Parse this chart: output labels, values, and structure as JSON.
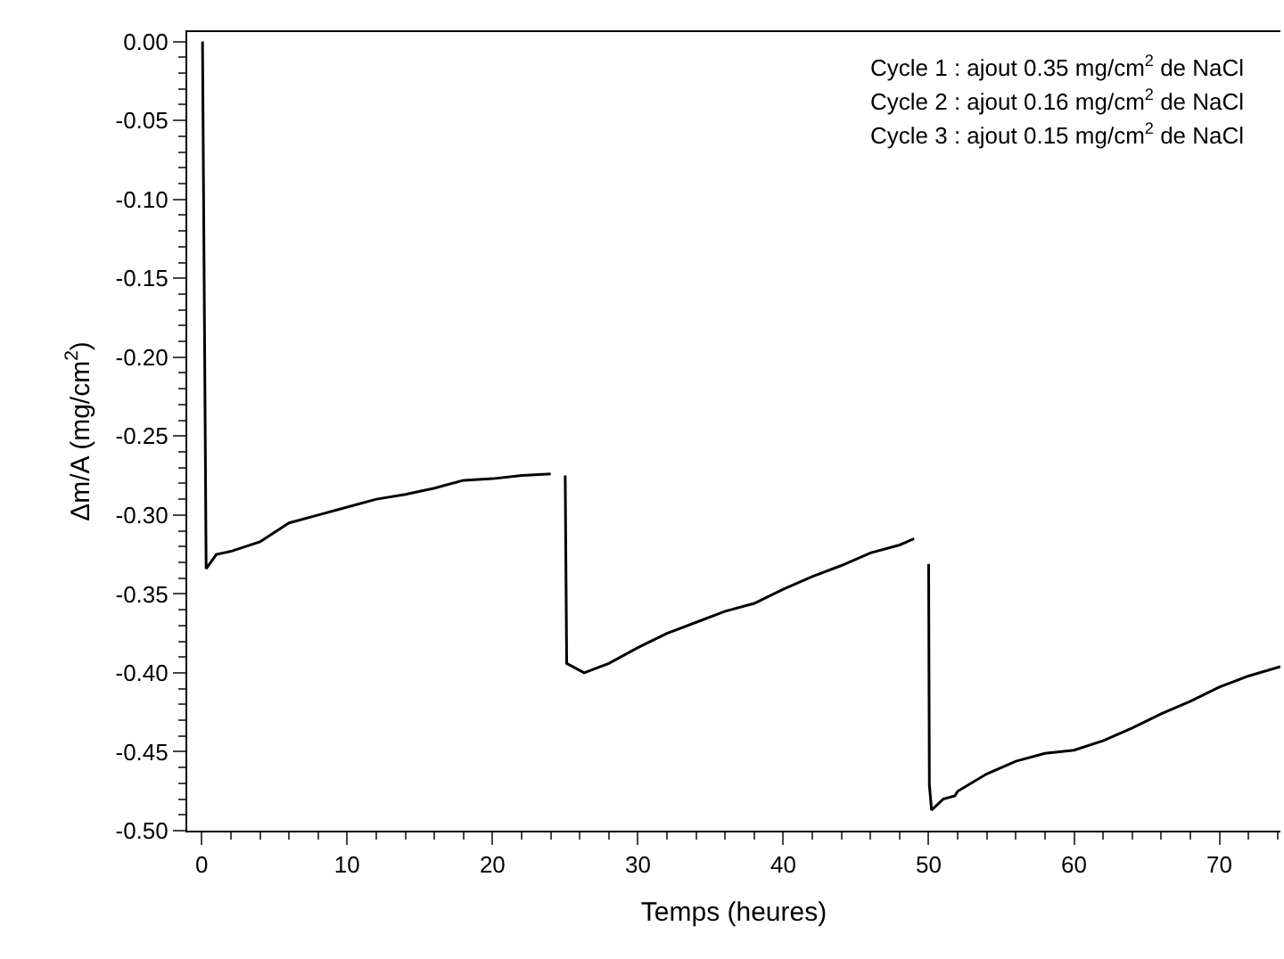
{
  "chart_data": {
    "type": "line",
    "xlabel": "Temps (heures)",
    "ylabel": "Δm/A (mg/cm$^{2}$)",
    "annotations": [
      "Cycle 1 : ajout 0.35 mg/cm$^{2}$ de NaCl",
      "Cycle 2 : ajout 0.16 mg/cm$^{2}$ de NaCl",
      "Cycle 3 : ajout 0.15 mg/cm$^{2}$ de NaCl"
    ],
    "x": [
      0.05,
      0.3,
      1,
      2,
      4,
      6,
      8,
      10,
      12,
      14,
      16,
      18,
      20,
      22,
      24,
      24.5,
      25,
      25.1,
      26.3,
      28,
      30,
      32,
      34,
      36,
      38,
      40,
      42,
      44,
      46,
      48,
      49,
      49.5,
      50,
      50.05,
      50.2,
      51,
      51.8,
      52,
      54,
      56,
      58,
      60,
      62,
      64,
      66,
      68,
      70,
      72,
      74.2
    ],
    "series": [
      {
        "color": "#000000",
        "values": [
          0.0,
          -0.334,
          -0.325,
          -0.323,
          -0.317,
          -0.305,
          -0.3,
          -0.295,
          -0.29,
          -0.287,
          -0.283,
          -0.278,
          -0.277,
          -0.275,
          -0.274,
          null,
          -0.275,
          -0.394,
          -0.4,
          -0.394,
          -0.384,
          -0.375,
          -0.368,
          -0.361,
          -0.356,
          -0.347,
          -0.339,
          -0.332,
          -0.324,
          -0.319,
          -0.315,
          null,
          -0.331,
          -0.471,
          -0.487,
          -0.48,
          -0.478,
          -0.475,
          -0.464,
          -0.456,
          -0.451,
          -0.449,
          -0.443,
          -0.435,
          -0.426,
          -0.418,
          -0.409,
          -0.402,
          -0.396
        ]
      }
    ],
    "xlim": [
      -1,
      74.2
    ],
    "xticks": [
      0,
      10,
      20,
      30,
      40,
      50,
      60,
      70
    ],
    "ylim": [
      -0.5,
      0.006
    ],
    "yticks": [
      {
        "value": 0,
        "label": "0.00"
      },
      {
        "value": -0.05,
        "label": "-0.05"
      },
      {
        "value": -0.1,
        "label": "-0.10"
      },
      {
        "value": -0.15,
        "label": "-0.15"
      },
      {
        "value": -0.2,
        "label": "-0.20"
      },
      {
        "value": -0.25,
        "label": "-0.25"
      },
      {
        "value": -0.3,
        "label": "-0.30"
      },
      {
        "value": -0.35,
        "label": "-0.35"
      },
      {
        "value": -0.4,
        "label": "-0.40"
      },
      {
        "value": -0.45,
        "label": "-0.45"
      },
      {
        "value": -0.5,
        "label": "-0.50"
      }
    ],
    "marker": "none",
    "line_style": "solid"
  }
}
